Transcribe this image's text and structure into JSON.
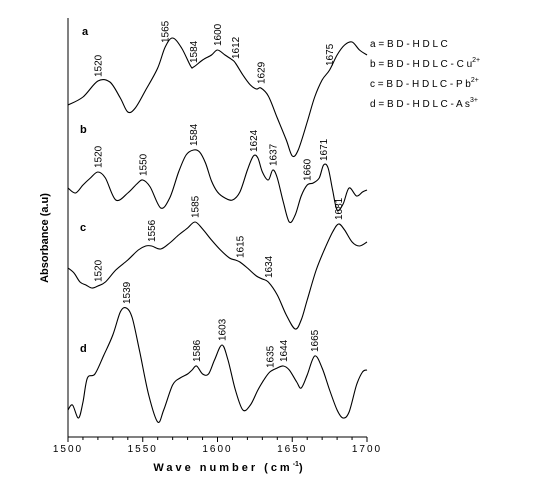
{
  "chart_data": {
    "type": "line",
    "title": "",
    "xlabel": "Wave number (cm",
    "xlabel_sup": "-1",
    "xlabel_end": ")",
    "ylabel": "Absorbance (a.u)",
    "xlim": [
      1500,
      1700
    ],
    "x_ticks": [
      "1500",
      "1550",
      "1600",
      "1650",
      "1700"
    ],
    "series": [
      {
        "id": "a",
        "points": [
          [
            1500,
            105
          ],
          [
            1510,
            97
          ],
          [
            1520,
            81
          ],
          [
            1528,
            82
          ],
          [
            1535,
            98
          ],
          [
            1540,
            112
          ],
          [
            1545,
            108
          ],
          [
            1552,
            90
          ],
          [
            1560,
            68
          ],
          [
            1565,
            47
          ],
          [
            1570,
            38
          ],
          [
            1576,
            48
          ],
          [
            1582,
            66
          ],
          [
            1584,
            67
          ],
          [
            1590,
            60
          ],
          [
            1596,
            55
          ],
          [
            1600,
            50
          ],
          [
            1605,
            55
          ],
          [
            1610,
            60
          ],
          [
            1612,
            63
          ],
          [
            1617,
            75
          ],
          [
            1622,
            85
          ],
          [
            1626,
            89
          ],
          [
            1629,
            88
          ],
          [
            1634,
            96
          ],
          [
            1640,
            118
          ],
          [
            1646,
            140
          ],
          [
            1650,
            156
          ],
          [
            1654,
            150
          ],
          [
            1660,
            122
          ],
          [
            1665,
            97
          ],
          [
            1670,
            80
          ],
          [
            1675,
            70
          ],
          [
            1680,
            55
          ],
          [
            1685,
            45
          ],
          [
            1690,
            42
          ],
          [
            1695,
            50
          ],
          [
            1700,
            55
          ]
        ],
        "peaks": [
          {
            "x": 1520,
            "label": "1520"
          },
          {
            "x": 1565,
            "label": "1565"
          },
          {
            "x": 1584,
            "label": "1584"
          },
          {
            "x": 1600,
            "label": "1600"
          },
          {
            "x": 1612,
            "label": "1612"
          },
          {
            "x": 1629,
            "label": "1629"
          },
          {
            "x": 1675,
            "label": "1675"
          }
        ]
      },
      {
        "id": "b",
        "points": [
          [
            1500,
            188
          ],
          [
            1505,
            193
          ],
          [
            1510,
            185
          ],
          [
            1515,
            178
          ],
          [
            1520,
            172
          ],
          [
            1525,
            178
          ],
          [
            1532,
            200
          ],
          [
            1540,
            193
          ],
          [
            1546,
            184
          ],
          [
            1550,
            180
          ],
          [
            1555,
            187
          ],
          [
            1562,
            208
          ],
          [
            1568,
            198
          ],
          [
            1574,
            172
          ],
          [
            1579,
            155
          ],
          [
            1584,
            150
          ],
          [
            1588,
            152
          ],
          [
            1592,
            163
          ],
          [
            1596,
            181
          ],
          [
            1600,
            192
          ],
          [
            1605,
            198
          ],
          [
            1610,
            200
          ],
          [
            1615,
            192
          ],
          [
            1620,
            170
          ],
          [
            1624,
            156
          ],
          [
            1627,
            158
          ],
          [
            1630,
            172
          ],
          [
            1634,
            180
          ],
          [
            1637,
            170
          ],
          [
            1640,
            178
          ],
          [
            1644,
            202
          ],
          [
            1648,
            222
          ],
          [
            1652,
            215
          ],
          [
            1656,
            196
          ],
          [
            1660,
            185
          ],
          [
            1664,
            183
          ],
          [
            1668,
            178
          ],
          [
            1671,
            165
          ],
          [
            1674,
            168
          ],
          [
            1677,
            190
          ],
          [
            1680,
            210
          ],
          [
            1684,
            204
          ],
          [
            1688,
            188
          ],
          [
            1693,
            196
          ],
          [
            1697,
            192
          ],
          [
            1700,
            190
          ]
        ],
        "peaks": [
          {
            "x": 1520,
            "label": "1520"
          },
          {
            "x": 1550,
            "label": "1550"
          },
          {
            "x": 1584,
            "label": "1584"
          },
          {
            "x": 1624,
            "label": "1624"
          },
          {
            "x": 1637,
            "label": "1637"
          },
          {
            "x": 1660,
            "label": "1660"
          },
          {
            "x": 1671,
            "label": "1671"
          }
        ]
      },
      {
        "id": "c",
        "points": [
          [
            1500,
            268
          ],
          [
            1504,
            273
          ],
          [
            1508,
            282
          ],
          [
            1512,
            285
          ],
          [
            1516,
            288
          ],
          [
            1520,
            286
          ],
          [
            1525,
            282
          ],
          [
            1532,
            270
          ],
          [
            1540,
            260
          ],
          [
            1547,
            250
          ],
          [
            1552,
            246
          ],
          [
            1556,
            246
          ],
          [
            1562,
            249
          ],
          [
            1568,
            243
          ],
          [
            1574,
            235
          ],
          [
            1580,
            228
          ],
          [
            1585,
            222
          ],
          [
            1590,
            229
          ],
          [
            1596,
            240
          ],
          [
            1602,
            250
          ],
          [
            1608,
            258
          ],
          [
            1612,
            260
          ],
          [
            1615,
            262
          ],
          [
            1620,
            268
          ],
          [
            1626,
            276
          ],
          [
            1630,
            279
          ],
          [
            1634,
            282
          ],
          [
            1640,
            295
          ],
          [
            1646,
            315
          ],
          [
            1652,
            329
          ],
          [
            1656,
            320
          ],
          [
            1660,
            300
          ],
          [
            1666,
            270
          ],
          [
            1672,
            248
          ],
          [
            1677,
            232
          ],
          [
            1681,
            224
          ],
          [
            1685,
            230
          ],
          [
            1690,
            242
          ],
          [
            1695,
            246
          ],
          [
            1700,
            242
          ]
        ],
        "peaks": [
          {
            "x": 1520,
            "label": "1520"
          },
          {
            "x": 1556,
            "label": "1556"
          },
          {
            "x": 1585,
            "label": "1585"
          },
          {
            "x": 1615,
            "label": "1615"
          },
          {
            "x": 1634,
            "label": "1634"
          },
          {
            "x": 1681,
            "label": "1681"
          }
        ]
      },
      {
        "id": "d",
        "points": [
          [
            1500,
            410
          ],
          [
            1503,
            405
          ],
          [
            1507,
            418
          ],
          [
            1510,
            402
          ],
          [
            1513,
            378
          ],
          [
            1518,
            374
          ],
          [
            1524,
            355
          ],
          [
            1530,
            335
          ],
          [
            1535,
            312
          ],
          [
            1539,
            308
          ],
          [
            1543,
            318
          ],
          [
            1548,
            352
          ],
          [
            1554,
            395
          ],
          [
            1560,
            422
          ],
          [
            1564,
            410
          ],
          [
            1570,
            385
          ],
          [
            1575,
            378
          ],
          [
            1580,
            374
          ],
          [
            1583,
            370
          ],
          [
            1586,
            366
          ],
          [
            1590,
            374
          ],
          [
            1594,
            374
          ],
          [
            1598,
            360
          ],
          [
            1603,
            345
          ],
          [
            1607,
            360
          ],
          [
            1612,
            390
          ],
          [
            1617,
            410
          ],
          [
            1622,
            405
          ],
          [
            1627,
            390
          ],
          [
            1631,
            380
          ],
          [
            1635,
            372
          ],
          [
            1640,
            368
          ],
          [
            1644,
            366
          ],
          [
            1648,
            370
          ],
          [
            1653,
            382
          ],
          [
            1656,
            388
          ],
          [
            1660,
            375
          ],
          [
            1665,
            356
          ],
          [
            1670,
            368
          ],
          [
            1675,
            390
          ],
          [
            1680,
            410
          ],
          [
            1684,
            418
          ],
          [
            1688,
            412
          ],
          [
            1693,
            385
          ],
          [
            1697,
            372
          ],
          [
            1700,
            370
          ]
        ],
        "peaks": [
          {
            "x": 1539,
            "label": "1539"
          },
          {
            "x": 1586,
            "label": "1586"
          },
          {
            "x": 1603,
            "label": "1603"
          },
          {
            "x": 1635,
            "label": "1635"
          },
          {
            "x": 1644,
            "label": "1644"
          },
          {
            "x": 1665,
            "label": "1665"
          }
        ]
      }
    ],
    "legend": {
      "position": "top-right",
      "entries": [
        {
          "key": "a",
          "text": "a = B D - H D L C",
          "sup": ""
        },
        {
          "key": "b",
          "text": "b = B D - H D L C - C u",
          "sup": "2+"
        },
        {
          "key": "c",
          "text": "c = B D - H D L C - P b",
          "sup": "2+"
        },
        {
          "key": "d",
          "text": "d = B D - H D L C - A s",
          "sup": "3+"
        }
      ]
    },
    "grid": false
  }
}
